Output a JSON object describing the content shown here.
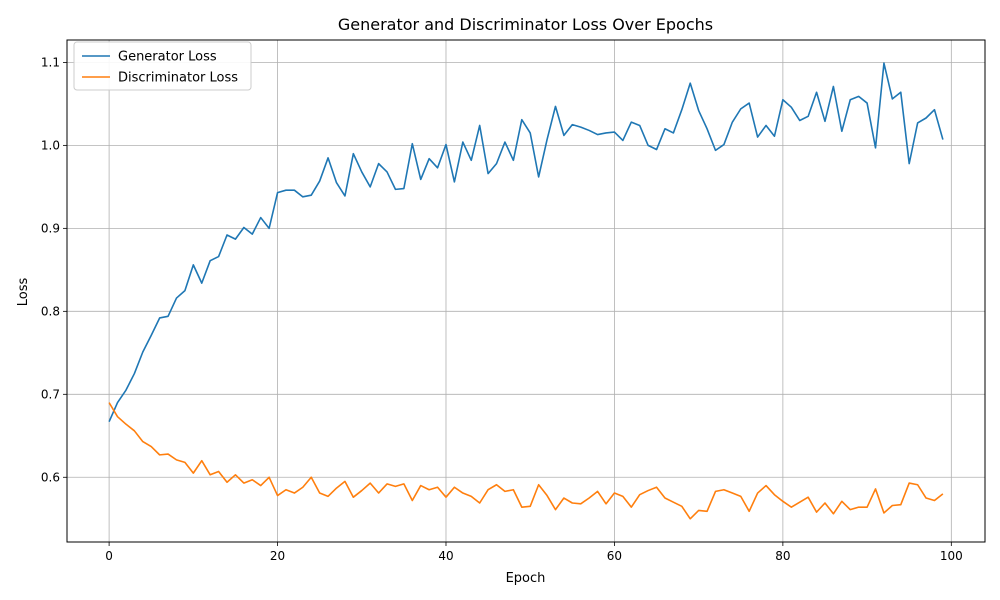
{
  "chart_data": {
    "type": "line",
    "title": "Generator and Discriminator Loss Over Epochs",
    "xlabel": "Epoch",
    "ylabel": "Loss",
    "xlim": [
      -5,
      104
    ],
    "ylim": [
      0.522,
      1.127
    ],
    "xticks": [
      0,
      20,
      40,
      60,
      80,
      100
    ],
    "yticks": [
      0.6,
      0.7,
      0.8,
      0.9,
      1.0,
      1.1
    ],
    "ytick_labels": [
      "0.6",
      "0.7",
      "0.8",
      "0.9",
      "1.0",
      "1.1"
    ],
    "grid": true,
    "legend_position": "upper-left",
    "series": [
      {
        "name": "Generator Loss",
        "color": "#1f77b4",
        "values": [
          0.667,
          0.69,
          0.705,
          0.725,
          0.751,
          0.771,
          0.792,
          0.794,
          0.816,
          0.825,
          0.856,
          0.834,
          0.861,
          0.866,
          0.892,
          0.887,
          0.901,
          0.893,
          0.913,
          0.9,
          0.943,
          0.946,
          0.946,
          0.938,
          0.94,
          0.957,
          0.985,
          0.955,
          0.939,
          0.99,
          0.968,
          0.95,
          0.978,
          0.968,
          0.947,
          0.948,
          1.002,
          0.959,
          0.984,
          0.973,
          1.001,
          0.956,
          1.004,
          0.982,
          1.024,
          0.966,
          0.978,
          1.004,
          0.982,
          1.031,
          1.015,
          0.962,
          1.007,
          1.047,
          1.012,
          1.025,
          1.022,
          1.018,
          1.013,
          1.015,
          1.016,
          1.006,
          1.028,
          1.024,
          1.0,
          0.995,
          1.02,
          1.015,
          1.043,
          1.075,
          1.042,
          1.02,
          0.994,
          1.001,
          1.028,
          1.044,
          1.051,
          1.01,
          1.024,
          1.011,
          1.055,
          1.046,
          1.03,
          1.035,
          1.064,
          1.029,
          1.071,
          1.017,
          1.055,
          1.059,
          1.051,
          0.997,
          1.099,
          1.056,
          1.064,
          0.978,
          1.027,
          1.033,
          1.043,
          1.007
        ]
      },
      {
        "name": "Discriminator Loss",
        "color": "#ff7f0e",
        "values": [
          0.69,
          0.673,
          0.664,
          0.656,
          0.643,
          0.637,
          0.627,
          0.628,
          0.621,
          0.618,
          0.605,
          0.62,
          0.603,
          0.607,
          0.594,
          0.603,
          0.593,
          0.597,
          0.59,
          0.6,
          0.578,
          0.585,
          0.581,
          0.588,
          0.6,
          0.581,
          0.577,
          0.587,
          0.595,
          0.576,
          0.584,
          0.593,
          0.581,
          0.592,
          0.589,
          0.592,
          0.572,
          0.59,
          0.585,
          0.588,
          0.576,
          0.588,
          0.581,
          0.577,
          0.569,
          0.585,
          0.591,
          0.583,
          0.585,
          0.564,
          0.565,
          0.591,
          0.578,
          0.561,
          0.575,
          0.569,
          0.568,
          0.575,
          0.583,
          0.568,
          0.581,
          0.577,
          0.564,
          0.579,
          0.584,
          0.588,
          0.575,
          0.57,
          0.565,
          0.55,
          0.56,
          0.559,
          0.583,
          0.585,
          0.581,
          0.577,
          0.559,
          0.581,
          0.59,
          0.579,
          0.571,
          0.564,
          0.57,
          0.576,
          0.558,
          0.569,
          0.556,
          0.571,
          0.561,
          0.564,
          0.564,
          0.586,
          0.557,
          0.566,
          0.567,
          0.593,
          0.591,
          0.575,
          0.572,
          0.58
        ]
      }
    ]
  }
}
